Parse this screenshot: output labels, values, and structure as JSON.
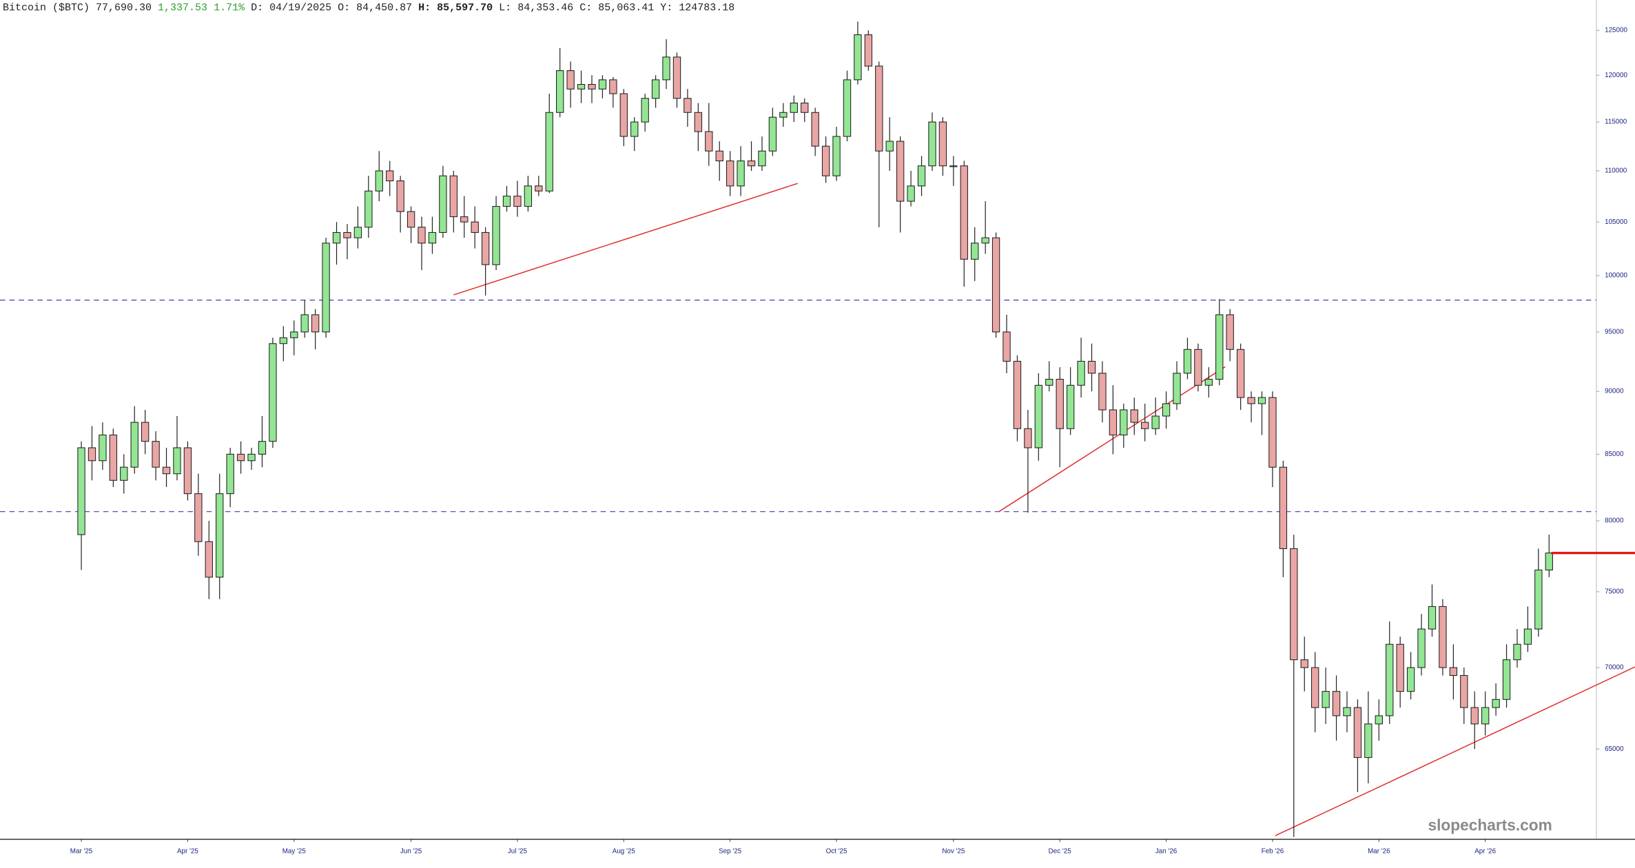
{
  "chart_data": {
    "type": "candlestick",
    "title": "Bitcoin ($BTC)",
    "last": "77,690.30",
    "change": "1,337.53",
    "change_pct": "1.71%",
    "info": [
      {
        "label": "D:",
        "value": "04/19/2025"
      },
      {
        "label": "O:",
        "value": "84,450.87"
      },
      {
        "label": "H:",
        "value": "85,597.70"
      },
      {
        "label": "L:",
        "value": "84,353.46"
      },
      {
        "label": "C:",
        "value": "85,063.41"
      },
      {
        "label": "Y:",
        "value": "124783.18"
      }
    ],
    "watermark": "slopecharts.com",
    "log_scale": true,
    "up_color": "#93e693",
    "down_color": "#eaa5a5",
    "last_line_color": "#e01010",
    "ylim": [
      59900,
      128500
    ],
    "yticks": [
      65000,
      70000,
      75000,
      80000,
      85000,
      90000,
      95000,
      100000,
      105000,
      110000,
      115000,
      120000,
      125000
    ],
    "categories": [
      "Mar '25",
      null,
      null,
      null,
      null,
      null,
      null,
      null,
      null,
      null,
      "Apr '25",
      null,
      null,
      null,
      null,
      null,
      null,
      null,
      null,
      null,
      "May '25",
      null,
      null,
      null,
      null,
      null,
      null,
      null,
      null,
      null,
      null,
      "Jun '25",
      null,
      null,
      null,
      null,
      null,
      null,
      null,
      null,
      null,
      "Jul '25",
      null,
      null,
      null,
      null,
      null,
      null,
      null,
      null,
      null,
      "Aug '25",
      null,
      null,
      null,
      null,
      null,
      null,
      null,
      null,
      null,
      "Sep '25",
      null,
      null,
      null,
      null,
      null,
      null,
      null,
      null,
      null,
      "Oct '25",
      null,
      null,
      null,
      null,
      null,
      null,
      null,
      null,
      null,
      null,
      "Nov '25",
      null,
      null,
      null,
      null,
      null,
      null,
      null,
      null,
      null,
      "Dec '25",
      null,
      null,
      null,
      null,
      null,
      null,
      null,
      null,
      null,
      "Jan '26",
      null,
      null,
      null,
      null,
      null,
      null,
      null,
      null,
      null,
      "Feb '26",
      null,
      null,
      null,
      null,
      null,
      null,
      null,
      null,
      null,
      "Mar '26",
      null,
      null,
      null,
      null,
      null,
      null,
      null,
      null,
      null,
      "Apr '26",
      null,
      null,
      null,
      null,
      null,
      null
    ],
    "ohlc": [
      [
        79000,
        86000,
        76500,
        85500
      ],
      [
        85500,
        87200,
        83000,
        84500
      ],
      [
        84500,
        87500,
        83800,
        86500
      ],
      [
        86500,
        87000,
        82500,
        83000
      ],
      [
        83000,
        85000,
        82000,
        84000
      ],
      [
        84000,
        88800,
        83500,
        87500
      ],
      [
        87500,
        88500,
        85000,
        86000
      ],
      [
        86000,
        86800,
        83000,
        84000
      ],
      [
        84000,
        85500,
        82500,
        83500
      ],
      [
        83500,
        88000,
        83000,
        85500
      ],
      [
        85500,
        86000,
        81500,
        82000
      ],
      [
        82000,
        83500,
        77500,
        78500
      ],
      [
        78500,
        80000,
        74500,
        76000
      ],
      [
        76000,
        83500,
        74500,
        82000
      ],
      [
        82000,
        85500,
        81000,
        85000
      ],
      [
        85000,
        86000,
        83500,
        84500
      ],
      [
        84500,
        85500,
        83800,
        85000
      ],
      [
        85000,
        88000,
        84000,
        86000
      ],
      [
        86000,
        94500,
        85500,
        94000
      ],
      [
        94000,
        95500,
        92500,
        94500
      ],
      [
        94500,
        96000,
        93000,
        95000
      ],
      [
        95000,
        97800,
        94500,
        96500
      ],
      [
        96500,
        97000,
        93500,
        95000
      ],
      [
        95000,
        103500,
        94500,
        103000
      ],
      [
        103000,
        105000,
        101000,
        104000
      ],
      [
        104000,
        104800,
        101500,
        103500
      ],
      [
        103500,
        106500,
        102500,
        104500
      ],
      [
        104500,
        109500,
        103500,
        108000
      ],
      [
        108000,
        112000,
        107000,
        110000
      ],
      [
        110000,
        111000,
        107500,
        109000
      ],
      [
        109000,
        109500,
        104000,
        106000
      ],
      [
        106000,
        106500,
        103000,
        104500
      ],
      [
        104500,
        105500,
        100500,
        103000
      ],
      [
        103000,
        105500,
        102000,
        104000
      ],
      [
        104000,
        110500,
        103500,
        109500
      ],
      [
        109500,
        110000,
        104000,
        105500
      ],
      [
        105500,
        107500,
        103500,
        105000
      ],
      [
        105000,
        106500,
        102500,
        104000
      ],
      [
        104000,
        104500,
        98200,
        101000
      ],
      [
        101000,
        107500,
        100500,
        106500
      ],
      [
        106500,
        108500,
        106000,
        107500
      ],
      [
        107500,
        109000,
        105500,
        106500
      ],
      [
        106500,
        109500,
        106000,
        108500
      ],
      [
        108500,
        109500,
        107500,
        108000
      ],
      [
        108000,
        118000,
        107800,
        116000
      ],
      [
        116000,
        123000,
        115500,
        120500
      ],
      [
        120500,
        121500,
        116500,
        118500
      ],
      [
        118500,
        120500,
        117000,
        119000
      ],
      [
        119000,
        120000,
        117000,
        118500
      ],
      [
        118500,
        120000,
        117500,
        119500
      ],
      [
        119500,
        119800,
        116500,
        118000
      ],
      [
        118000,
        118500,
        112500,
        113500
      ],
      [
        113500,
        115500,
        112000,
        115000
      ],
      [
        115000,
        118000,
        114000,
        117500
      ],
      [
        117500,
        120000,
        116500,
        119500
      ],
      [
        119500,
        124000,
        118500,
        122000
      ],
      [
        122000,
        122500,
        116500,
        117500
      ],
      [
        117500,
        118500,
        114500,
        116000
      ],
      [
        116000,
        117000,
        112000,
        114000
      ],
      [
        114000,
        117000,
        110500,
        112000
      ],
      [
        112000,
        113000,
        109000,
        111000
      ],
      [
        111000,
        112000,
        107500,
        108500
      ],
      [
        108500,
        112500,
        107500,
        111000
      ],
      [
        111000,
        113000,
        110000,
        110500
      ],
      [
        110500,
        113500,
        110000,
        112000
      ],
      [
        112000,
        116500,
        111500,
        115500
      ],
      [
        115500,
        117000,
        114500,
        116000
      ],
      [
        116000,
        117800,
        115000,
        117000
      ],
      [
        117000,
        117500,
        115000,
        116000
      ],
      [
        116000,
        116500,
        111500,
        112500
      ],
      [
        112500,
        113500,
        108800,
        109500
      ],
      [
        109500,
        114500,
        109000,
        113500
      ],
      [
        113500,
        120500,
        113000,
        119500
      ],
      [
        119500,
        126000,
        119000,
        124500
      ],
      [
        124500,
        125000,
        120500,
        121000
      ],
      [
        121000,
        121500,
        104500,
        112000
      ],
      [
        112000,
        115500,
        110000,
        113000
      ],
      [
        113000,
        113500,
        104000,
        107000
      ],
      [
        107000,
        110000,
        106500,
        108500
      ],
      [
        108500,
        111500,
        107500,
        110500
      ],
      [
        110500,
        116000,
        110000,
        115000
      ],
      [
        115000,
        115500,
        109500,
        110500
      ],
      [
        110500,
        111500,
        108500,
        110500
      ],
      [
        110500,
        111000,
        99000,
        101500
      ],
      [
        101500,
        104500,
        99500,
        103000
      ],
      [
        103000,
        107000,
        102000,
        103500
      ],
      [
        103500,
        104000,
        94500,
        95000
      ],
      [
        95000,
        96500,
        91500,
        92500
      ],
      [
        92500,
        93000,
        86000,
        87000
      ],
      [
        87000,
        88500,
        80600,
        85500
      ],
      [
        85500,
        91500,
        84500,
        90500
      ],
      [
        90500,
        92500,
        90000,
        91000
      ],
      [
        91000,
        92000,
        84000,
        87000
      ],
      [
        87000,
        92000,
        86500,
        90500
      ],
      [
        90500,
        94500,
        89500,
        92500
      ],
      [
        92500,
        94000,
        90000,
        91500
      ],
      [
        91500,
        92500,
        87500,
        88500
      ],
      [
        88500,
        90500,
        85000,
        86500
      ],
      [
        86500,
        89000,
        85500,
        88500
      ],
      [
        88500,
        89500,
        86500,
        87500
      ],
      [
        87500,
        89000,
        86000,
        87000
      ],
      [
        87000,
        89500,
        86500,
        88000
      ],
      [
        88000,
        90000,
        87000,
        89000
      ],
      [
        89000,
        92500,
        88500,
        91500
      ],
      [
        91500,
        94500,
        91000,
        93500
      ],
      [
        93500,
        94000,
        90000,
        90500
      ],
      [
        90500,
        92000,
        89500,
        91000
      ],
      [
        91000,
        97900,
        90500,
        96500
      ],
      [
        96500,
        97000,
        92500,
        93500
      ],
      [
        93500,
        94000,
        88500,
        89500
      ],
      [
        89500,
        90000,
        87500,
        89000
      ],
      [
        89000,
        90000,
        86500,
        89500
      ],
      [
        89500,
        90000,
        82500,
        84000
      ],
      [
        84000,
        84500,
        76000,
        78000
      ],
      [
        78000,
        79000,
        60000,
        70500
      ],
      [
        70500,
        72000,
        68500,
        70000
      ],
      [
        70000,
        71000,
        66000,
        67500
      ],
      [
        67500,
        70000,
        66500,
        68500
      ],
      [
        68500,
        69500,
        65500,
        67000
      ],
      [
        67000,
        68500,
        66000,
        67500
      ],
      [
        67500,
        68000,
        62500,
        64500
      ],
      [
        64500,
        68500,
        63000,
        66500
      ],
      [
        66500,
        68000,
        65500,
        67000
      ],
      [
        67000,
        73000,
        66500,
        71500
      ],
      [
        71500,
        72000,
        67500,
        68500
      ],
      [
        68500,
        71000,
        68000,
        70000
      ],
      [
        70000,
        73500,
        69500,
        72500
      ],
      [
        72500,
        75500,
        72000,
        74000
      ],
      [
        74000,
        74500,
        69500,
        70000
      ],
      [
        70000,
        71500,
        68000,
        69500
      ],
      [
        69500,
        70000,
        66500,
        67500
      ],
      [
        67500,
        68500,
        65000,
        66500
      ],
      [
        66500,
        68500,
        65800,
        67500
      ],
      [
        67500,
        69000,
        67000,
        68000
      ],
      [
        68000,
        71500,
        67500,
        70500
      ],
      [
        70500,
        72500,
        70000,
        71500
      ],
      [
        71500,
        74000,
        71000,
        72500
      ],
      [
        72500,
        78000,
        72000,
        76500
      ],
      [
        76500,
        79000,
        76000,
        77690.3
      ]
    ]
  }
}
